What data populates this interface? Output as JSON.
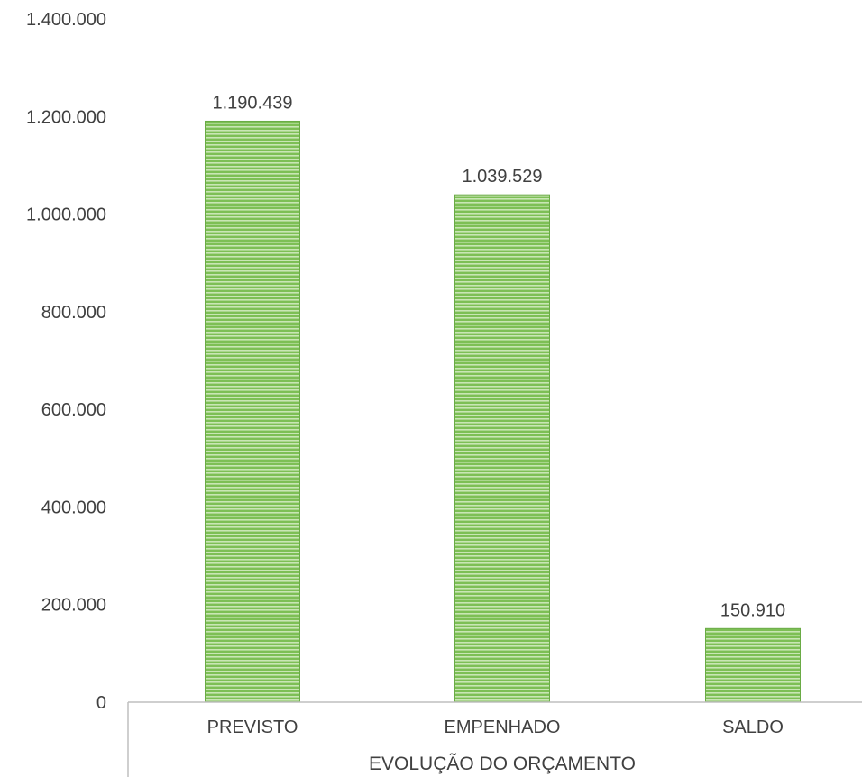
{
  "chart_data": {
    "type": "bar",
    "categories": [
      "PREVISTO",
      "EMPENHADO",
      "SALDO"
    ],
    "values": [
      1190439,
      1039529,
      150910
    ],
    "data_labels": [
      "1.190.439",
      "1.039.529",
      "150.910"
    ],
    "xlabel": "EVOLUÇÃO DO ORÇAMENTO",
    "ylabel": "",
    "ylim": [
      0,
      1400000
    ],
    "yticks": [
      0,
      200000,
      400000,
      600000,
      800000,
      1000000,
      1200000,
      1400000
    ],
    "ytick_labels": [
      "0",
      "200.000",
      "400.000",
      "600.000",
      "800.000",
      "1.000.000",
      "1.200.000",
      "1.400.000"
    ],
    "grid": false,
    "legend": "none",
    "colors": {
      "bar_fill": "#7dbf55",
      "bar_stripe": "#c9e6b5",
      "bar_edge": "#6aab45",
      "axis": "#bfbfbf",
      "text": "#404040"
    }
  }
}
